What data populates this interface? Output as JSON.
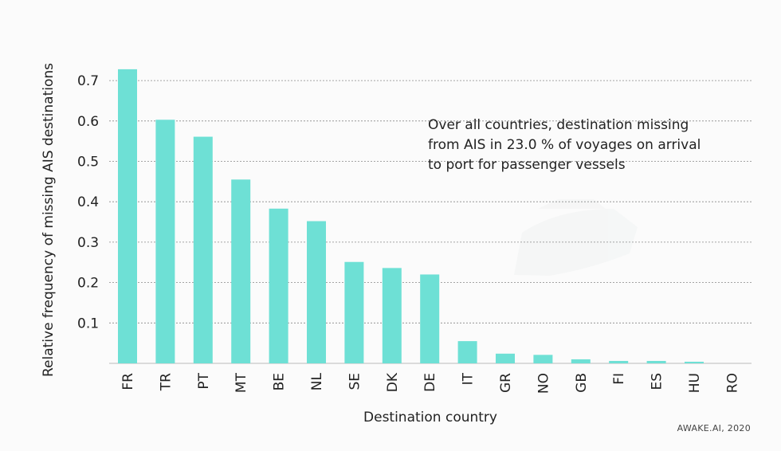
{
  "chart_data": {
    "type": "bar",
    "categories": [
      "FR",
      "TR",
      "PT",
      "MT",
      "BE",
      "NL",
      "SE",
      "DK",
      "DE",
      "IT",
      "GR",
      "NO",
      "GB",
      "FI",
      "ES",
      "HU",
      "RO"
    ],
    "values": [
      0.728,
      0.603,
      0.561,
      0.455,
      0.383,
      0.352,
      0.251,
      0.236,
      0.22,
      0.055,
      0.024,
      0.021,
      0.01,
      0.006,
      0.006,
      0.004,
      0.0
    ],
    "xlabel": "Destination country",
    "ylabel": "Relative frequency of missing AIS destinations",
    "yticks": [
      "0.1",
      "0.2",
      "0.3",
      "0.4",
      "0.5",
      "0.6",
      "0.7"
    ],
    "ylim": [
      0,
      0.76
    ],
    "grid": "horizontal-dashed",
    "bar_color": "#6ee0d5",
    "annotation": [
      "Over all countries, destination missing",
      "from AIS in 23.0 % of voyages on arrival",
      "to port for passenger vessels"
    ],
    "credit": "AWAKE.AI, 2020"
  }
}
